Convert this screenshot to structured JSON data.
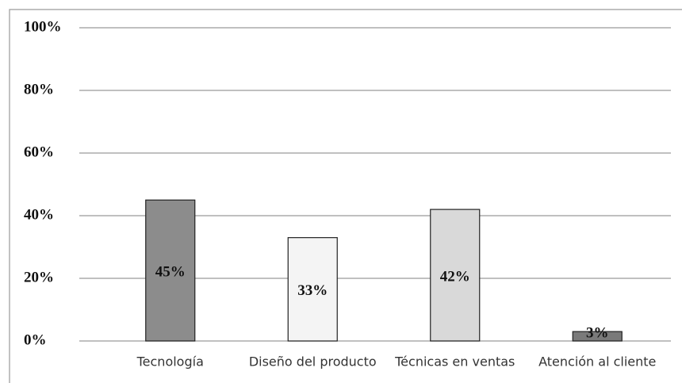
{
  "chart_data": {
    "type": "bar",
    "categories": [
      "Tecnología",
      "Diseño del producto",
      "Técnicas en ventas",
      "Atención al cliente"
    ],
    "values": [
      45,
      33,
      42,
      3
    ],
    "value_labels": [
      "45%",
      "33%",
      "42%",
      "3%"
    ],
    "colors": [
      "#8c8c8c",
      "#f4f4f4",
      "#d9d9d9",
      "#7a7a7a"
    ],
    "ylim": [
      0,
      100
    ],
    "yticks": [
      {
        "value": 0,
        "label": "0%"
      },
      {
        "value": 20,
        "label": "20%"
      },
      {
        "value": 40,
        "label": "40%"
      },
      {
        "value": 60,
        "label": "60%"
      },
      {
        "value": 80,
        "label": "80%"
      },
      {
        "value": 100,
        "label": "100%"
      }
    ],
    "grid": true
  }
}
